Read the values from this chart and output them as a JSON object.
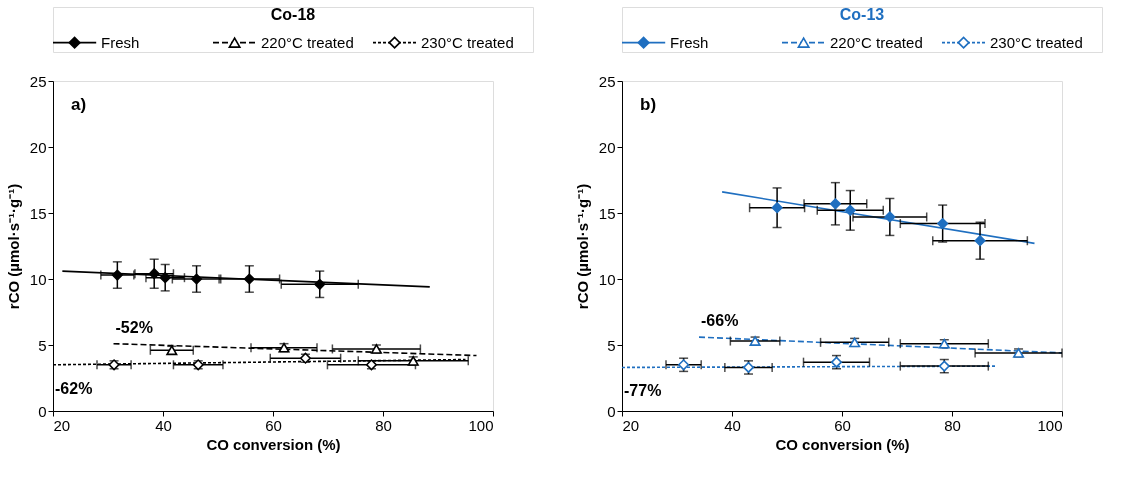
{
  "chart_data": [
    {
      "type": "scatter",
      "legend_title": "Co-18",
      "legend": "top",
      "xlabel": "CO conversion (%)",
      "ylabel": "rCO (µmol·s⁻¹·g⁻¹)",
      "xlim": [
        20,
        100
      ],
      "ylim": [
        0,
        25
      ],
      "xticks": [
        20,
        40,
        60,
        80,
        100
      ],
      "yticks": [
        0,
        5,
        10,
        15,
        20,
        25
      ],
      "grid": false,
      "annotations": [
        "a)",
        {
          "text": "-52%",
          "x": 31,
          "y": 5.1
        },
        {
          "text": "-62%",
          "x": 20,
          "y": 3.5
        }
      ],
      "series": [
        {
          "name": "Fresh",
          "color": "#000000",
          "marker": "diamond",
          "line_style": "solid",
          "x": [
            31.7,
            38.4,
            40.4,
            46.1,
            55.7,
            68.5
          ],
          "values": [
            10.3,
            10.4,
            10.1,
            10.0,
            10.0,
            9.6
          ],
          "errors": [
            1.0,
            1.1,
            1.0,
            1.0,
            1.0,
            1.0
          ],
          "xerrors": [
            3,
            3.5,
            3.5,
            4.4,
            5.5,
            7
          ]
        },
        {
          "name": "220°C treated",
          "color": "#000000",
          "marker": "triangle",
          "line_style": "dashed",
          "x": [
            41.6,
            62,
            78.8,
            85.5
          ],
          "values": [
            4.6,
            4.8,
            4.7,
            3.8
          ],
          "errors": [
            0.3,
            0.3,
            0.3,
            0.3
          ],
          "xerrors": [
            3.9,
            6,
            8,
            10
          ]
        },
        {
          "name": "230°C treated",
          "color": "#000000",
          "marker": "diamond",
          "line_style": "dotted",
          "x": [
            31.1,
            46.4,
            65.9,
            77.9
          ],
          "values": [
            3.5,
            3.5,
            4.0,
            3.5
          ],
          "errors": [
            0.3,
            0.3,
            0.3,
            0.3
          ],
          "xerrors": [
            3.1,
            4.5,
            6.4,
            8
          ]
        },
        {
          "type": "line",
          "color": "#000000",
          "line_style": "solid",
          "x": [
            21.7,
            88.5
          ],
          "values": [
            10.6,
            9.4
          ]
        },
        {
          "type": "line",
          "color": "#000000",
          "line_style": "dashed",
          "x": [
            31,
            97
          ],
          "values": [
            5.1,
            4.2
          ]
        },
        {
          "type": "line",
          "color": "#000000",
          "line_style": "dotted",
          "x": [
            20,
            95
          ],
          "values": [
            3.5,
            3.9
          ]
        }
      ]
    },
    {
      "type": "scatter",
      "legend_title": "Co-13",
      "legend": "top",
      "xlabel": "CO conversion (%)",
      "ylabel": "rCO (µmol·s⁻¹·g⁻¹)",
      "xlim": [
        20,
        100
      ],
      "ylim": [
        0,
        25
      ],
      "xticks": [
        20,
        40,
        60,
        80,
        100
      ],
      "yticks": [
        0,
        5,
        10,
        15,
        20,
        25
      ],
      "grid": false,
      "annotations": [
        "b)",
        {
          "text": "-66%",
          "x": 34,
          "y": 5.6
        },
        {
          "text": "-77%",
          "x": 20,
          "y": 3.3
        }
      ],
      "series": [
        {
          "name": "Fresh",
          "color": "#1f6fc0",
          "marker": "diamond",
          "line_style": "solid",
          "x": [
            48.2,
            58.8,
            61.5,
            68.7,
            78.3,
            85.1
          ],
          "values": [
            15.4,
            15.7,
            15.2,
            14.7,
            14.2,
            12.9
          ],
          "errors": [
            1.5,
            1.6,
            1.5,
            1.4,
            1.4,
            1.4
          ],
          "xerrors": [
            5,
            5.7,
            6,
            6.7,
            7.7,
            8.6
          ]
        },
        {
          "name": "220°C treated",
          "color": "#1f6fc0",
          "marker": "triangle",
          "line_style": "dashed",
          "x": [
            44.2,
            62.3,
            78.6,
            92.1
          ],
          "values": [
            5.3,
            5.2,
            5.1,
            4.4
          ],
          "errors": [
            0.3,
            0.3,
            0.3,
            0.3
          ],
          "xerrors": [
            4.5,
            6.2,
            8,
            7.9
          ]
        },
        {
          "name": "230°C treated",
          "color": "#1f6fc0",
          "marker": "diamond",
          "line_style": "dotted",
          "x": [
            31.2,
            43,
            59,
            78.6
          ],
          "values": [
            3.5,
            3.3,
            3.7,
            3.4
          ],
          "errors": [
            0.5,
            0.5,
            0.5,
            0.5
          ],
          "xerrors": [
            3.2,
            4.3,
            6,
            8
          ]
        },
        {
          "type": "line",
          "color": "#1f6fc0",
          "line_style": "solid",
          "x": [
            38.2,
            95
          ],
          "values": [
            16.6,
            12.7
          ]
        },
        {
          "type": "line",
          "color": "#1f6fc0",
          "line_style": "dashed",
          "x": [
            34,
            100
          ],
          "values": [
            5.6,
            4.4
          ]
        },
        {
          "type": "line",
          "color": "#1f6fc0",
          "line_style": "dotted",
          "x": [
            20,
            88
          ],
          "values": [
            3.3,
            3.4
          ]
        }
      ]
    }
  ]
}
